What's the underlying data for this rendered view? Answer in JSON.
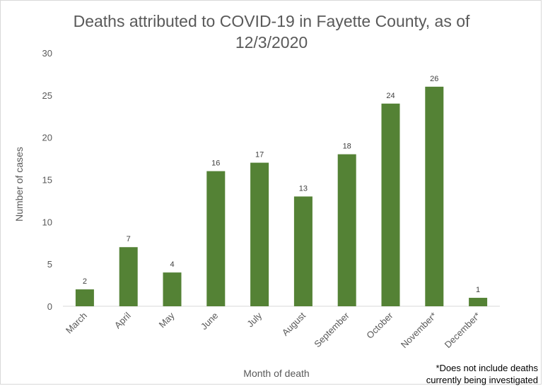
{
  "chart_data": {
    "type": "bar",
    "title_lines": [
      "Deaths attributed to COVID-19 in Fayette County, as of",
      "12/3/2020"
    ],
    "xlabel": "Month of death",
    "ylabel": "Number of cases",
    "categories": [
      "March",
      "April",
      "May",
      "June",
      "July",
      "August",
      "September",
      "October",
      "November*",
      "December*"
    ],
    "values": [
      2,
      7,
      4,
      16,
      17,
      13,
      18,
      24,
      26,
      1
    ],
    "ylim": [
      0,
      30
    ],
    "yticks": [
      0,
      5,
      10,
      15,
      20,
      25,
      30
    ],
    "grid": false,
    "legend": "none",
    "bar_color": "#548235",
    "footnote_lines": [
      "*Does not include deaths",
      "currently being investigated"
    ]
  }
}
